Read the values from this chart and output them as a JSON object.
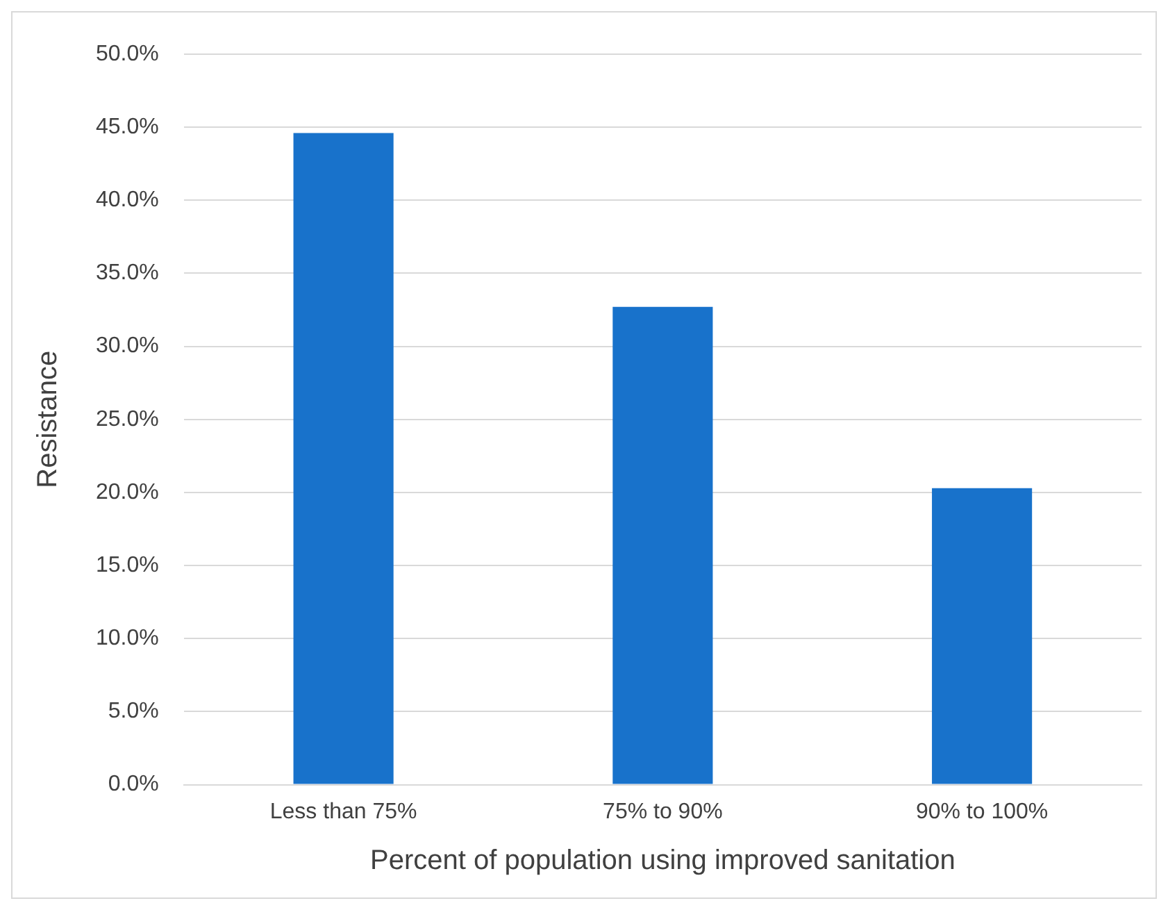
{
  "chart_data": {
    "type": "bar",
    "xlabel": "Percent of population using improved sanitation",
    "ylabel": "Resistance",
    "categories": [
      "Less than 75%",
      "75% to 90%",
      "90% to 100%"
    ],
    "values": [
      44.6,
      32.7,
      20.3
    ],
    "color": "#1872cb",
    "ylim": [
      0,
      50
    ],
    "yticks": [
      {
        "value": 0,
        "label": "0.0%"
      },
      {
        "value": 5,
        "label": "5.0%"
      },
      {
        "value": 10,
        "label": "10.0%"
      },
      {
        "value": 15,
        "label": "15.0%"
      },
      {
        "value": 20,
        "label": "20.0%"
      },
      {
        "value": 25,
        "label": "25.0%"
      },
      {
        "value": 30,
        "label": "30.0%"
      },
      {
        "value": 35,
        "label": "35.0%"
      },
      {
        "value": 40,
        "label": "40.0%"
      },
      {
        "value": 45,
        "label": "45.0%"
      },
      {
        "value": 50,
        "label": "50.0%"
      }
    ],
    "grid": "y",
    "legend": false
  }
}
